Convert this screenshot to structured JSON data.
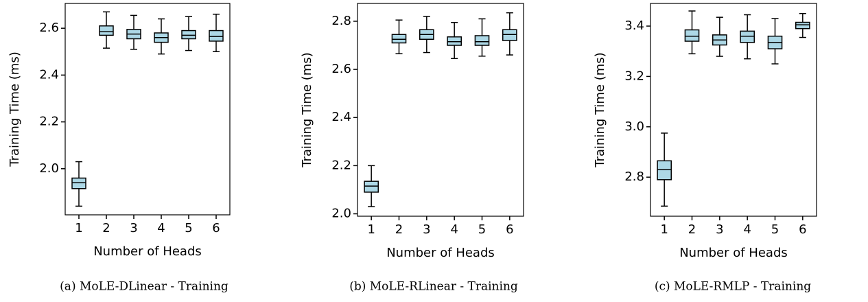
{
  "chart_data": [
    {
      "type": "box",
      "caption": "(a) MoLE-DLinear - Training",
      "xlabel": "Number of Heads",
      "ylabel": "Training Time (ms)",
      "color": "#add8e6",
      "categories": [
        "1",
        "2",
        "3",
        "4",
        "5",
        "6"
      ],
      "boxes": [
        {
          "whislo": 1.84,
          "q1": 1.915,
          "med": 1.94,
          "q3": 1.96,
          "whishi": 2.03
        },
        {
          "whislo": 2.515,
          "q1": 2.57,
          "med": 2.585,
          "q3": 2.61,
          "whishi": 2.67
        },
        {
          "whislo": 2.51,
          "q1": 2.555,
          "med": 2.575,
          "q3": 2.595,
          "whishi": 2.655
        },
        {
          "whislo": 2.49,
          "q1": 2.54,
          "med": 2.56,
          "q3": 2.58,
          "whishi": 2.64
        },
        {
          "whislo": 2.505,
          "q1": 2.555,
          "med": 2.57,
          "q3": 2.59,
          "whishi": 2.65
        },
        {
          "whislo": 2.5,
          "q1": 2.545,
          "med": 2.565,
          "q3": 2.59,
          "whishi": 2.66
        }
      ],
      "ylim": [
        1.803,
        2.706
      ],
      "yticks": [
        {
          "value": 2.0,
          "label": "2.0"
        },
        2.2,
        2.4,
        2.6
      ]
    },
    {
      "type": "box",
      "caption": "(b) MoLE-RLinear - Training",
      "xlabel": "Number of Heads",
      "ylabel": "Training Time (ms)",
      "color": "#add8e6",
      "categories": [
        "1",
        "2",
        "3",
        "4",
        "5",
        "6"
      ],
      "boxes": [
        {
          "whislo": 2.03,
          "q1": 2.09,
          "med": 2.115,
          "q3": 2.135,
          "whishi": 2.2
        },
        {
          "whislo": 2.665,
          "q1": 2.71,
          "med": 2.725,
          "q3": 2.745,
          "whishi": 2.805
        },
        {
          "whislo": 2.67,
          "q1": 2.725,
          "med": 2.745,
          "q3": 2.765,
          "whishi": 2.82
        },
        {
          "whislo": 2.645,
          "q1": 2.7,
          "med": 2.715,
          "q3": 2.735,
          "whishi": 2.795
        },
        {
          "whislo": 2.655,
          "q1": 2.7,
          "med": 2.715,
          "q3": 2.74,
          "whishi": 2.81
        },
        {
          "whislo": 2.66,
          "q1": 2.72,
          "med": 2.745,
          "q3": 2.765,
          "whishi": 2.835
        }
      ],
      "ylim": [
        1.99,
        2.874
      ],
      "yticks": [
        {
          "value": 2.0,
          "label": "2.0"
        },
        2.2,
        2.4,
        2.6,
        2.8
      ]
    },
    {
      "type": "box",
      "caption": "(c) MoLE-RMLP - Training",
      "xlabel": "Number of Heads",
      "ylabel": "Training Time (ms)",
      "color": "#add8e6",
      "categories": [
        "1",
        "2",
        "3",
        "4",
        "5",
        "6"
      ],
      "boxes": [
        {
          "whislo": 2.685,
          "q1": 2.79,
          "med": 2.83,
          "q3": 2.865,
          "whishi": 2.975
        },
        {
          "whislo": 3.29,
          "q1": 3.34,
          "med": 3.36,
          "q3": 3.385,
          "whishi": 3.46
        },
        {
          "whislo": 3.28,
          "q1": 3.325,
          "med": 3.345,
          "q3": 3.365,
          "whishi": 3.435
        },
        {
          "whislo": 3.27,
          "q1": 3.335,
          "med": 3.36,
          "q3": 3.38,
          "whishi": 3.445
        },
        {
          "whislo": 3.25,
          "q1": 3.31,
          "med": 3.335,
          "q3": 3.36,
          "whishi": 3.43
        },
        {
          "whislo": 3.355,
          "q1": 3.39,
          "med": 3.405,
          "q3": 3.415,
          "whishi": 3.45
        }
      ],
      "ylim": [
        2.645,
        3.49
      ],
      "yticks": [
        2.8,
        {
          "value": 3.0,
          "label": "3.0"
        },
        3.2,
        3.4
      ]
    }
  ]
}
